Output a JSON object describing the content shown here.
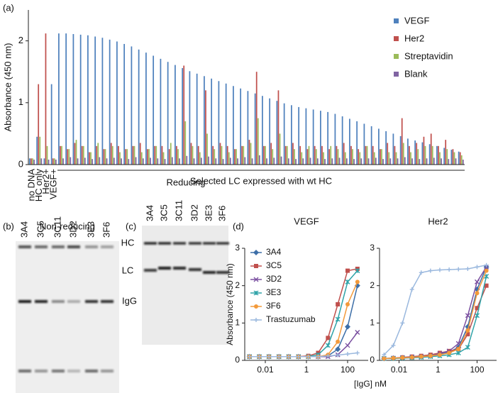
{
  "chart_data": [
    {
      "type": "bar",
      "panel_label": "(a)",
      "ylabel": "Absorbance (450 nm)",
      "annotation": "Selected LC expressed with wt HC",
      "categories": [
        "no DNA",
        "HC only",
        "Her2+",
        "VEGF+",
        null,
        null,
        null,
        null,
        null,
        null,
        null,
        null,
        null,
        null,
        null,
        null,
        null,
        null,
        null,
        null,
        null,
        null,
        null,
        null,
        null,
        null,
        null,
        null,
        null,
        null,
        null,
        null,
        null,
        null,
        null,
        null,
        null,
        null,
        null,
        null,
        null,
        null,
        null,
        null,
        null,
        null,
        null,
        null,
        null,
        null,
        null,
        null,
        null,
        null,
        null,
        null,
        null,
        null,
        null,
        null
      ],
      "series": [
        {
          "name": "VEGF",
          "color": "#4f81bd",
          "values": [
            0.1,
            0.45,
            0.1,
            1.3,
            2.12,
            2.12,
            2.11,
            2.1,
            2.09,
            2.07,
            2.05,
            2.02,
            1.99,
            1.95,
            1.91,
            1.86,
            1.81,
            1.76,
            1.71,
            1.66,
            1.61,
            1.56,
            1.51,
            1.47,
            1.43,
            1.39,
            1.35,
            1.31,
            1.27,
            1.23,
            1.19,
            1.15,
            1.11,
            1.07,
            1.03,
            0.99,
            0.96,
            0.93,
            0.91,
            0.89,
            0.87,
            0.85,
            0.82,
            0.78,
            0.74,
            0.7,
            0.66,
            0.62,
            0.58,
            0.54,
            0.5,
            0.46,
            0.42,
            0.39,
            0.36,
            0.33,
            0.3,
            0.27,
            0.24,
            0.21
          ]
        },
        {
          "name": "Her2",
          "color": "#c0504d",
          "values": [
            0.1,
            1.3,
            2.12,
            0.1,
            0.3,
            0.25,
            0.35,
            0.3,
            0.2,
            0.3,
            0.25,
            0.35,
            0.3,
            0.25,
            0.3,
            0.35,
            0.25,
            0.3,
            0.3,
            0.25,
            0.3,
            1.6,
            0.35,
            0.3,
            1.2,
            0.3,
            0.35,
            0.3,
            0.25,
            0.3,
            0.4,
            1.5,
            0.3,
            0.35,
            1.2,
            0.3,
            0.35,
            0.3,
            0.25,
            0.3,
            0.3,
            0.25,
            0.3,
            0.35,
            0.3,
            0.25,
            0.3,
            0.3,
            0.25,
            0.35,
            0.3,
            0.75,
            0.3,
            0.35,
            0.45,
            0.5,
            0.3,
            0.4,
            0.25,
            0.2
          ]
        },
        {
          "name": "Streptavidin",
          "color": "#9bbb59",
          "values": [
            0.1,
            0.45,
            0.3,
            0.1,
            0.3,
            0.25,
            0.4,
            0.3,
            0.2,
            0.35,
            0.25,
            0.3,
            0.2,
            0.25,
            0.3,
            0.2,
            0.25,
            0.3,
            0.2,
            0.35,
            0.25,
            0.7,
            0.3,
            0.2,
            0.5,
            0.25,
            0.3,
            0.2,
            0.25,
            0.3,
            0.35,
            0.75,
            0.3,
            0.25,
            0.5,
            0.3,
            0.25,
            0.2,
            0.3,
            0.25,
            0.2,
            0.3,
            0.25,
            0.2,
            0.25,
            0.2,
            0.3,
            0.2,
            0.25,
            0.2,
            0.2,
            0.35,
            0.2,
            0.25,
            0.3,
            0.3,
            0.2,
            0.25,
            0.2,
            0.15
          ]
        },
        {
          "name": "Blank",
          "color": "#8064a2",
          "values": [
            0.08,
            0.1,
            0.08,
            0.08,
            0.1,
            0.12,
            0.1,
            0.11,
            0.09,
            0.12,
            0.1,
            0.11,
            0.1,
            0.09,
            0.12,
            0.1,
            0.11,
            0.1,
            0.09,
            0.12,
            0.1,
            0.14,
            0.1,
            0.11,
            0.13,
            0.1,
            0.09,
            0.11,
            0.1,
            0.12,
            0.1,
            0.15,
            0.1,
            0.11,
            0.13,
            0.1,
            0.09,
            0.1,
            0.11,
            0.1,
            0.09,
            0.1,
            0.11,
            0.1,
            0.09,
            0.1,
            0.1,
            0.11,
            0.09,
            0.1,
            0.1,
            0.12,
            0.1,
            0.09,
            0.1,
            0.11,
            0.1,
            0.09,
            0.1,
            0.08
          ]
        }
      ],
      "ylim": [
        0,
        2.5
      ],
      "yticks": [
        0,
        1,
        2
      ],
      "legend": "top-right"
    },
    {
      "type": "line",
      "panel_label": "(d)",
      "title": "VEGF",
      "ylabel": "Absorbance (450 nm)",
      "xlabel": "[IgG] nM",
      "x": [
        0.0017,
        0.0051,
        0.015,
        0.046,
        0.137,
        0.41,
        1.23,
        3.7,
        11.1,
        33.3,
        100,
        300
      ],
      "log_x": true,
      "xlim": [
        0.001,
        1000
      ],
      "xticks": [
        0.01,
        1,
        100
      ],
      "ylim": [
        0,
        3
      ],
      "yticks": [
        0,
        1,
        2,
        3
      ],
      "legend": "top-left",
      "series": [
        {
          "name": "3A4",
          "color": "#3d6fa8",
          "marker": "diamond",
          "values": [
            0.1,
            0.1,
            0.1,
            0.1,
            0.1,
            0.1,
            0.1,
            0.1,
            0.12,
            0.3,
            0.9,
            2.0
          ]
        },
        {
          "name": "3C5",
          "color": "#c0504d",
          "marker": "square",
          "values": [
            0.1,
            0.1,
            0.1,
            0.1,
            0.1,
            0.1,
            0.12,
            0.2,
            0.6,
            1.5,
            2.4,
            2.45
          ]
        },
        {
          "name": "3D2",
          "color": "#7a4fa0",
          "marker": "x",
          "values": [
            0.1,
            0.1,
            0.1,
            0.1,
            0.1,
            0.1,
            0.1,
            0.1,
            0.1,
            0.15,
            0.4,
            0.75
          ]
        },
        {
          "name": "3E3",
          "color": "#2fa3a8",
          "marker": "star",
          "values": [
            0.1,
            0.1,
            0.1,
            0.1,
            0.1,
            0.1,
            0.1,
            0.15,
            0.4,
            1.1,
            2.1,
            2.4
          ]
        },
        {
          "name": "3F6",
          "color": "#f39a3b",
          "marker": "circle",
          "values": [
            0.1,
            0.1,
            0.1,
            0.1,
            0.1,
            0.1,
            0.1,
            0.1,
            0.15,
            0.5,
            1.5,
            2.1
          ]
        },
        {
          "name": "Trastuzumab",
          "color": "#9ab8de",
          "marker": "plus",
          "values": [
            0.1,
            0.1,
            0.1,
            0.1,
            0.1,
            0.1,
            0.1,
            0.1,
            0.12,
            0.14,
            0.17,
            0.2
          ]
        }
      ]
    },
    {
      "type": "line",
      "title": "Her2",
      "x": [
        0.0017,
        0.0051,
        0.015,
        0.046,
        0.137,
        0.41,
        1.23,
        3.7,
        11.1,
        33.3,
        100,
        300
      ],
      "log_x": true,
      "xlim": [
        0.001,
        1000
      ],
      "xticks": [
        0.01,
        1,
        100
      ],
      "ylim": [
        0,
        3
      ],
      "yticks": [
        0,
        1,
        2,
        3
      ],
      "series": [
        {
          "color": "#3d6fa8",
          "marker": "diamond",
          "values": [
            0.05,
            0.06,
            0.07,
            0.08,
            0.1,
            0.13,
            0.18,
            0.22,
            0.35,
            0.9,
            1.9,
            2.5
          ]
        },
        {
          "color": "#c0504d",
          "marker": "square",
          "values": [
            0.05,
            0.06,
            0.08,
            0.1,
            0.12,
            0.15,
            0.2,
            0.25,
            0.3,
            0.7,
            1.4,
            2.0
          ]
        },
        {
          "color": "#7a4fa0",
          "marker": "x",
          "values": [
            0.05,
            0.06,
            0.07,
            0.09,
            0.1,
            0.12,
            0.18,
            0.25,
            0.45,
            1.2,
            2.1,
            2.5
          ]
        },
        {
          "color": "#2fa3a8",
          "marker": "star",
          "values": [
            0.05,
            0.05,
            0.06,
            0.07,
            0.08,
            0.1,
            0.12,
            0.15,
            0.2,
            0.35,
            1.2,
            2.25
          ]
        },
        {
          "color": "#f39a3b",
          "marker": "circle",
          "values": [
            0.05,
            0.06,
            0.07,
            0.08,
            0.1,
            0.12,
            0.15,
            0.2,
            0.3,
            0.8,
            1.8,
            2.4
          ]
        },
        {
          "color": "#9ab8de",
          "marker": "plus",
          "values": [
            0.15,
            0.4,
            1.0,
            1.9,
            2.35,
            2.4,
            2.42,
            2.43,
            2.44,
            2.45,
            2.5,
            2.55
          ]
        }
      ]
    }
  ],
  "gels": [
    {
      "label": "(b)",
      "title": "Non-reducing",
      "lanes": [
        "3A4",
        "3C5",
        "3C11",
        "3D2",
        "3E3",
        "3F6"
      ],
      "bands": [
        "IgG"
      ]
    },
    {
      "label": "(c)",
      "title": "Reducing",
      "lanes": [
        "3A4",
        "3C5",
        "3C11",
        "3D2",
        "3E3",
        "3F6"
      ],
      "bands": [
        "HC",
        "LC"
      ]
    }
  ]
}
